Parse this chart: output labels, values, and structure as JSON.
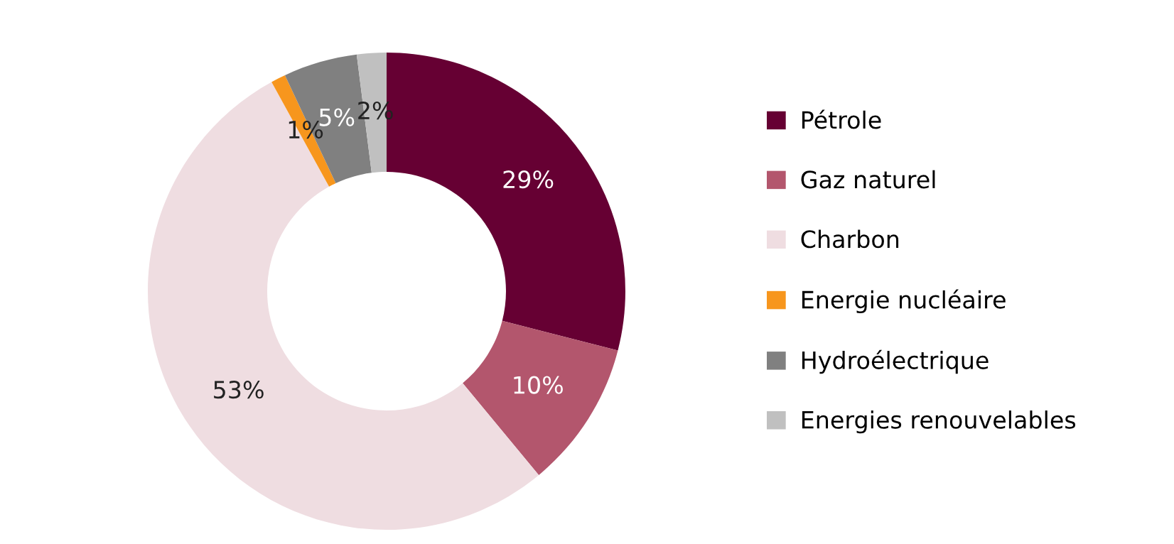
{
  "chart_data": {
    "type": "donut",
    "categories": [
      "Pétrole",
      "Gaz naturel",
      "Charbon",
      "Energie nucléaire",
      "Hydroélectrique",
      "Energies renouvelables"
    ],
    "values": [
      29,
      10,
      53,
      1,
      5,
      2
    ],
    "colors": [
      "#660033",
      "#b3566d",
      "#efdde1",
      "#f7961d",
      "#808080",
      "#c0c0c0"
    ],
    "value_labels": [
      "29%",
      "10%",
      "53%",
      "1%",
      "5%",
      "2%"
    ],
    "legend": "right"
  }
}
